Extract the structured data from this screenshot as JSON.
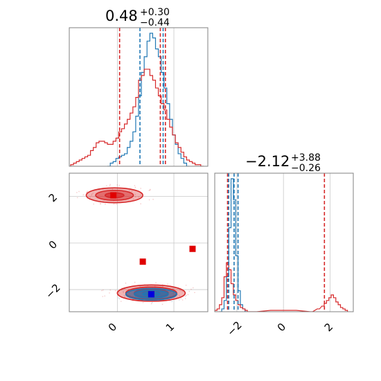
{
  "chart_data": [
    {
      "panel": "marginal-x",
      "type": "histogram",
      "title": {
        "value": "0.48",
        "plus": "+0.30",
        "minus": "−0.44"
      },
      "xlim": [
        -0.85,
        1.6
      ],
      "series": [
        {
          "color": "#1f77b4",
          "x": [
            -0.15,
            -0.1,
            -0.05,
            0.0,
            0.05,
            0.1,
            0.15,
            0.2,
            0.25,
            0.3,
            0.35,
            0.4,
            0.45,
            0.5,
            0.55,
            0.6,
            0.65,
            0.7,
            0.75,
            0.8,
            0.85,
            0.9,
            0.95,
            1.0,
            1.05,
            1.1,
            1.15,
            1.2,
            1.25
          ],
          "y": [
            0,
            2,
            3,
            5,
            6,
            7,
            8,
            12,
            16,
            22,
            32,
            45,
            60,
            70,
            80,
            85,
            82,
            75,
            70,
            60,
            50,
            40,
            30,
            20,
            14,
            8,
            5,
            2,
            0
          ]
        },
        {
          "color": "#d62728",
          "x": [
            -0.8,
            -0.75,
            -0.7,
            -0.65,
            -0.6,
            -0.55,
            -0.5,
            -0.45,
            -0.4,
            -0.35,
            -0.3,
            -0.25,
            -0.2,
            -0.15,
            -0.1,
            -0.05,
            0.0,
            0.05,
            0.1,
            0.15,
            0.2,
            0.25,
            0.3,
            0.35,
            0.4,
            0.45,
            0.5,
            0.55,
            0.6,
            0.65,
            0.7,
            0.75,
            0.8,
            0.85,
            0.9,
            0.95,
            1.0,
            1.05,
            1.1,
            1.15,
            1.2,
            1.25,
            1.3,
            1.35,
            1.4,
            1.45,
            1.5
          ],
          "y": [
            1,
            2,
            3,
            4,
            5,
            6,
            7,
            10,
            12,
            15,
            16,
            16,
            15,
            14,
            14,
            16,
            18,
            22,
            24,
            27,
            30,
            34,
            38,
            44,
            55,
            58,
            62,
            62,
            58,
            55,
            50,
            45,
            40,
            36,
            30,
            25,
            20,
            15,
            12,
            9,
            6,
            4,
            3,
            2,
            1,
            1,
            0
          ]
        }
      ],
      "vlines": [
        {
          "x": 0.04,
          "color": "#d62728"
        },
        {
          "x": 0.4,
          "color": "#1f77b4"
        },
        {
          "x": 0.76,
          "color": "#d62728"
        },
        {
          "x": 0.81,
          "color": "#1f77b4"
        },
        {
          "x": 0.85,
          "color": "#d62728"
        }
      ],
      "grid": true
    },
    {
      "panel": "joint",
      "type": "contour",
      "xlim": [
        -0.85,
        1.6
      ],
      "ylim": [
        -2.95,
        3.0
      ],
      "xticks": [
        "0",
        "1"
      ],
      "yticks": [
        "−2",
        "0",
        "2"
      ],
      "contours": [
        {
          "color": "#d62728",
          "center": [
            -0.05,
            2.05
          ],
          "radii": [
            0.5,
            0.32
          ],
          "levels": 3
        },
        {
          "color": "#d62728",
          "center": [
            0.6,
            -2.15
          ],
          "radii": [
            0.6,
            0.35
          ],
          "levels": 4
        },
        {
          "color": "#1f77b4",
          "center": [
            0.6,
            -2.2
          ],
          "radii": [
            0.45,
            0.25
          ],
          "levels": 3
        }
      ],
      "markers": [
        {
          "x": 0.45,
          "y": -0.8,
          "color": "#e00000"
        },
        {
          "x": 1.33,
          "y": -0.25,
          "color": "#e00000"
        },
        {
          "x": -0.07,
          "y": 2.05,
          "color": "#e00000"
        },
        {
          "x": 0.6,
          "y": -2.2,
          "color": "#e00000"
        },
        {
          "x": 0.6,
          "y": -2.2,
          "color": "#0000e0"
        }
      ],
      "grid": true
    },
    {
      "panel": "marginal-y",
      "type": "histogram",
      "title": {
        "value": "−2.12",
        "plus": "+3.88",
        "minus": "−0.26"
      },
      "xlim": [
        -2.95,
        3.0
      ],
      "xticks": [
        "−2",
        "0",
        "2"
      ],
      "series": [
        {
          "color": "#1f77b4",
          "x": [
            -2.7,
            -2.6,
            -2.5,
            -2.4,
            -2.3,
            -2.2,
            -2.1,
            -2.0,
            -1.9,
            -1.8,
            -1.7,
            -1.6
          ],
          "y": [
            0,
            2,
            8,
            25,
            60,
            95,
            80,
            40,
            15,
            5,
            2,
            0
          ]
        },
        {
          "color": "#d62728",
          "x": [
            -2.9,
            -2.8,
            -2.7,
            -2.6,
            -2.5,
            -2.4,
            -2.3,
            -2.2,
            -2.1,
            -2.0,
            -1.9,
            -1.8,
            -1.7,
            -1.6,
            -1.5,
            -1.2,
            -0.5,
            0.5,
            1.2,
            1.5,
            1.7,
            1.8,
            1.9,
            2.0,
            2.1,
            2.2,
            2.3,
            2.4,
            2.5,
            2.6,
            2.7
          ],
          "y": [
            1,
            2,
            5,
            10,
            25,
            35,
            30,
            20,
            12,
            8,
            5,
            3,
            2,
            1,
            0,
            0,
            1,
            1,
            0,
            2,
            4,
            6,
            8,
            10,
            12,
            10,
            7,
            5,
            3,
            2,
            1
          ]
        }
      ],
      "vlines": [
        {
          "x": -2.4,
          "color": "#d62728"
        },
        {
          "x": -2.35,
          "color": "#1f77b4"
        },
        {
          "x": -2.12,
          "color": "#1f77b4"
        },
        {
          "x": -1.95,
          "color": "#1f77b4"
        },
        {
          "x": 1.76,
          "color": "#d62728"
        }
      ],
      "grid": true
    }
  ]
}
